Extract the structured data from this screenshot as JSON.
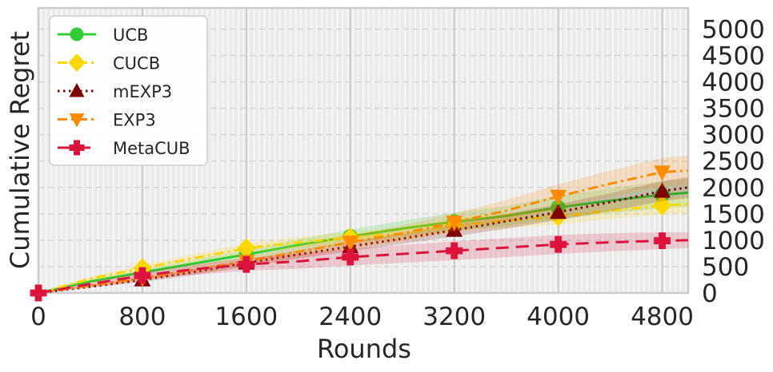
{
  "chart_data": {
    "type": "line",
    "title": "",
    "xlabel": "Rounds",
    "ylabel": "Cumulative Regret",
    "xlim": [
      0,
      5000
    ],
    "ylim": [
      0,
      5400
    ],
    "xticks": [
      0,
      800,
      1600,
      2400,
      3200,
      4000,
      4800
    ],
    "xtick_labels": [
      "0",
      "800",
      "1600",
      "2400",
      "3200",
      "4000",
      "4800"
    ],
    "yticks": [
      0,
      500,
      1000,
      1500,
      2000,
      2500,
      3000,
      3500,
      4000,
      4500,
      5000
    ],
    "ytick_labels": [
      "0",
      "500",
      "1000",
      "1500",
      "2000",
      "2500",
      "3000",
      "3500",
      "4000",
      "4500",
      "5000"
    ],
    "y_axis_side": "right",
    "grid": true,
    "legend_position": "upper-left",
    "series": [
      {
        "name": "UCB",
        "color": "#32cd32",
        "linestyle": "solid",
        "marker": "circle",
        "x": [
          0,
          400,
          800,
          1200,
          1600,
          2000,
          2400,
          2800,
          3200,
          3600,
          4000,
          4400,
          4800,
          5000
        ],
        "y": [
          0,
          220,
          390,
          560,
          730,
          910,
          1070,
          1220,
          1350,
          1460,
          1620,
          1750,
          1860,
          1900
        ],
        "band": [
          0,
          30,
          50,
          70,
          90,
          110,
          130,
          150,
          170,
          190,
          220,
          240,
          260,
          270
        ],
        "marker_x": [
          800,
          1600,
          2400,
          3200,
          4000,
          4800
        ],
        "marker_y": [
          390,
          730,
          1070,
          1350,
          1620,
          1860
        ]
      },
      {
        "name": "CUCB",
        "color": "#ffd700",
        "linestyle": "dashdot",
        "marker": "diamond",
        "x": [
          0,
          400,
          800,
          1200,
          1600,
          2000,
          2400,
          2800,
          3200,
          3600,
          4000,
          4400,
          4800,
          5000
        ],
        "y": [
          0,
          270,
          470,
          660,
          850,
          960,
          1050,
          1130,
          1280,
          1370,
          1450,
          1560,
          1660,
          1680
        ],
        "band": [
          0,
          40,
          60,
          80,
          90,
          100,
          110,
          120,
          130,
          140,
          150,
          160,
          170,
          170
        ],
        "marker_x": [
          800,
          1600,
          2400,
          3200,
          4000,
          4800
        ],
        "marker_y": [
          470,
          850,
          1050,
          1280,
          1450,
          1660
        ]
      },
      {
        "name": "mEXP3",
        "color": "#800000",
        "linestyle": "dotted",
        "marker": "triangle-up",
        "x": [
          0,
          400,
          800,
          1200,
          1600,
          2000,
          2400,
          2800,
          3200,
          3600,
          4000,
          4400,
          4800,
          5000
        ],
        "y": [
          0,
          120,
          250,
          400,
          570,
          730,
          880,
          1030,
          1190,
          1360,
          1530,
          1720,
          1930,
          2000
        ],
        "band": [
          0,
          20,
          40,
          60,
          70,
          80,
          90,
          100,
          120,
          140,
          150,
          170,
          190,
          200
        ],
        "marker_x": [
          800,
          1600,
          2400,
          3200,
          4000,
          4800
        ],
        "marker_y": [
          250,
          570,
          880,
          1190,
          1530,
          1930
        ]
      },
      {
        "name": "EXP3",
        "color": "#ff8c00",
        "linestyle": "dashdot",
        "marker": "triangle-down",
        "x": [
          0,
          400,
          800,
          1200,
          1600,
          2000,
          2400,
          2800,
          3200,
          3600,
          4000,
          4400,
          4800,
          5000
        ],
        "y": [
          0,
          140,
          280,
          440,
          600,
          780,
          960,
          1130,
          1340,
          1560,
          1830,
          2070,
          2290,
          2320
        ],
        "band": [
          0,
          30,
          50,
          70,
          90,
          110,
          130,
          150,
          170,
          200,
          230,
          250,
          270,
          280
        ],
        "marker_x": [
          800,
          1600,
          2400,
          3200,
          4000,
          4800
        ],
        "marker_y": [
          280,
          600,
          960,
          1340,
          1830,
          2290
        ]
      },
      {
        "name": "MetaCUB",
        "color": "#dc143c",
        "linestyle": "dashed",
        "marker": "plus",
        "x": [
          0,
          400,
          800,
          1200,
          1600,
          2000,
          2400,
          2800,
          3200,
          3600,
          4000,
          4400,
          4800,
          5000
        ],
        "y": [
          0,
          170,
          330,
          450,
          540,
          600,
          680,
          740,
          800,
          860,
          920,
          960,
          990,
          1000
        ],
        "band": [
          0,
          40,
          70,
          100,
          120,
          140,
          160,
          170,
          180,
          180,
          180,
          170,
          160,
          150
        ],
        "marker_x": [
          0,
          800,
          1600,
          2400,
          3200,
          4000,
          4800
        ],
        "marker_y": [
          0,
          330,
          540,
          680,
          800,
          920,
          990
        ]
      }
    ]
  }
}
